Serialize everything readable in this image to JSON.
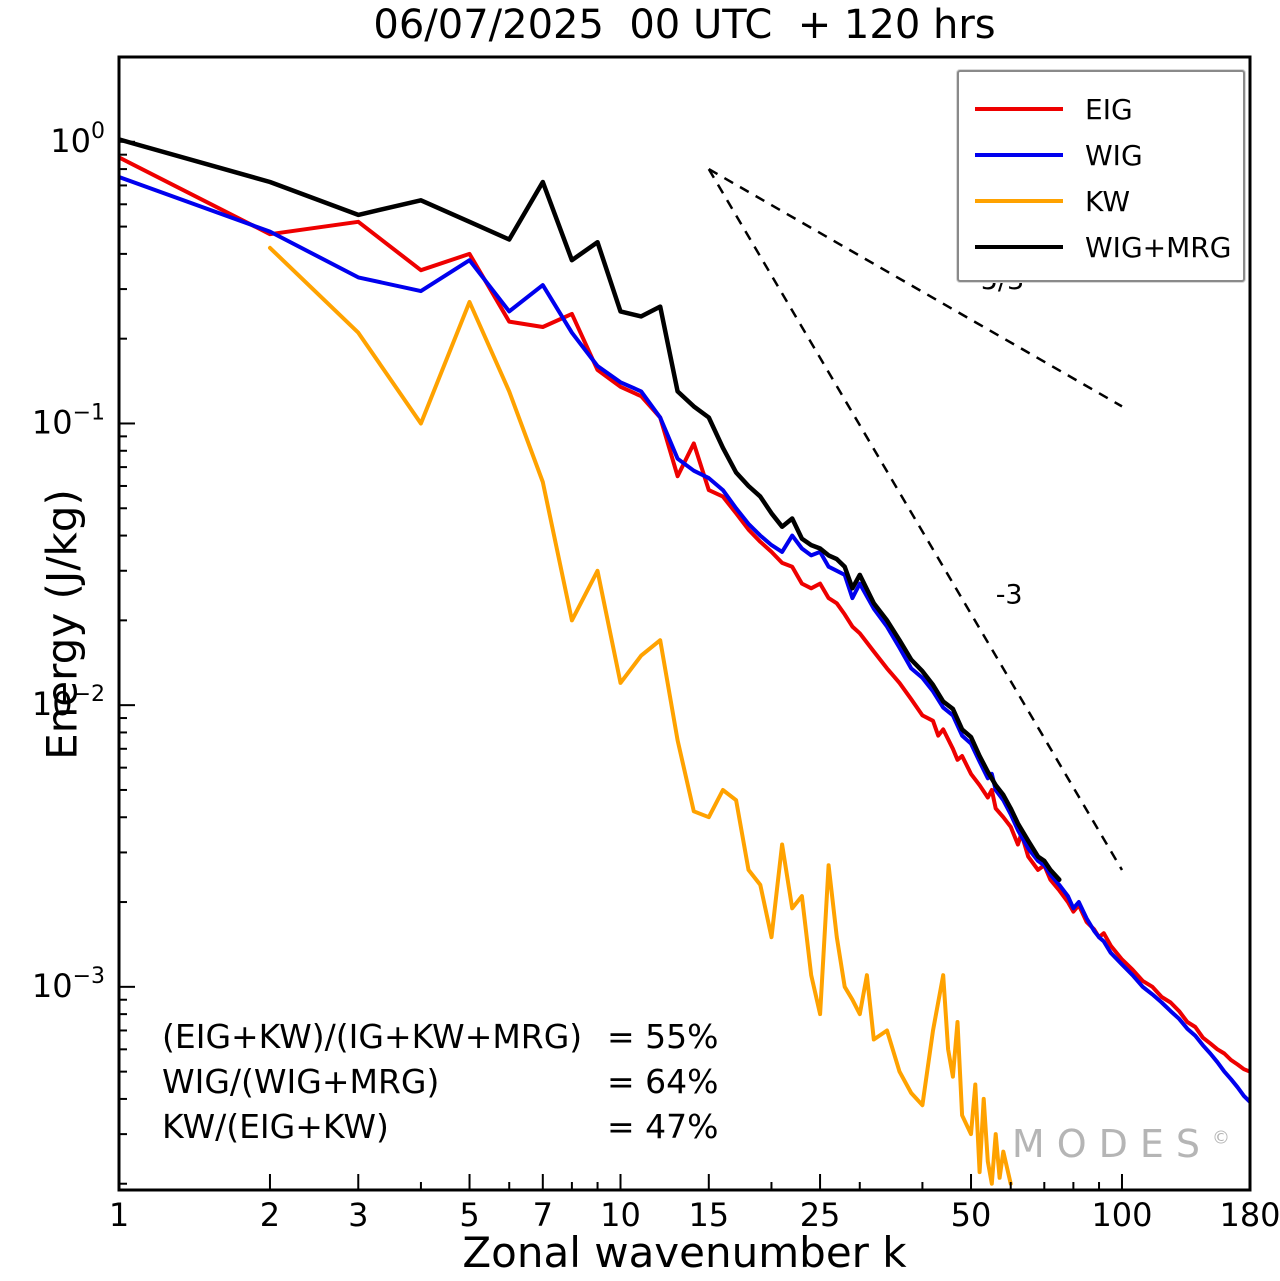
{
  "title": "06/07/2025  00 UTC  + 120 hrs",
  "xlabel": "Zonal wavenumber k",
  "ylabel": "Energy (J/kg)",
  "watermark": {
    "text": "MODES",
    "mark": "©"
  },
  "annotations": [
    {
      "label": "(EIG+KW)/(IG+KW+MRG)",
      "value": "= 55%"
    },
    {
      "label": "WIG/(WIG+MRG)",
      "value": "= 64%"
    },
    {
      "label": "KW/(EIG+KW)",
      "value": "= 47%"
    }
  ],
  "chart_data": {
    "type": "line",
    "x_scale": "log",
    "y_scale": "log",
    "xlim": [
      1,
      180
    ],
    "ylim": [
      0.00019,
      2.0
    ],
    "x_ticks": [
      1,
      2,
      3,
      5,
      7,
      10,
      15,
      25,
      50,
      100,
      180
    ],
    "x_minor_ticks": [
      4,
      6,
      8,
      9,
      20,
      30,
      40,
      60,
      70,
      80,
      90
    ],
    "y_tick_exponents": [
      0,
      -1,
      -2,
      -3
    ],
    "grid": false,
    "legend_position": "top-right",
    "series": [
      {
        "name": "EIG",
        "color": "#ee0000",
        "points": [
          [
            1,
            0.88
          ],
          [
            2,
            0.47
          ],
          [
            3,
            0.52
          ],
          [
            4,
            0.35
          ],
          [
            5,
            0.4
          ],
          [
            6,
            0.23
          ],
          [
            7,
            0.22
          ],
          [
            8,
            0.245
          ],
          [
            9,
            0.155
          ],
          [
            10,
            0.135
          ],
          [
            11,
            0.125
          ],
          [
            12,
            0.105
          ],
          [
            13,
            0.065
          ],
          [
            14,
            0.085
          ],
          [
            15,
            0.058
          ],
          [
            16,
            0.055
          ],
          [
            17,
            0.048
          ],
          [
            18,
            0.042
          ],
          [
            19,
            0.038
          ],
          [
            20,
            0.035
          ],
          [
            21,
            0.032
          ],
          [
            22,
            0.031
          ],
          [
            23,
            0.027
          ],
          [
            24,
            0.026
          ],
          [
            25,
            0.027
          ],
          [
            26,
            0.024
          ],
          [
            27,
            0.023
          ],
          [
            28,
            0.021
          ],
          [
            29,
            0.019
          ],
          [
            30,
            0.018
          ],
          [
            32,
            0.0155
          ],
          [
            34,
            0.0135
          ],
          [
            36,
            0.012
          ],
          [
            38,
            0.0105
          ],
          [
            40,
            0.0092
          ],
          [
            42,
            0.0088
          ],
          [
            43,
            0.0078
          ],
          [
            44,
            0.0082
          ],
          [
            46,
            0.007
          ],
          [
            47,
            0.0064
          ],
          [
            48,
            0.0066
          ],
          [
            50,
            0.0057
          ],
          [
            52,
            0.0052
          ],
          [
            54,
            0.0047
          ],
          [
            55,
            0.005
          ],
          [
            56,
            0.0043
          ],
          [
            58,
            0.004
          ],
          [
            60,
            0.0037
          ],
          [
            62,
            0.0032
          ],
          [
            63,
            0.0035
          ],
          [
            65,
            0.0029
          ],
          [
            68,
            0.0026
          ],
          [
            70,
            0.0027
          ],
          [
            72,
            0.0024
          ],
          [
            75,
            0.0022
          ],
          [
            78,
            0.002
          ],
          [
            80,
            0.00185
          ],
          [
            82,
            0.00195
          ],
          [
            85,
            0.0017
          ],
          [
            88,
            0.0016
          ],
          [
            90,
            0.0015
          ],
          [
            92,
            0.00155
          ],
          [
            95,
            0.0014
          ],
          [
            100,
            0.00125
          ],
          [
            105,
            0.00115
          ],
          [
            110,
            0.00105
          ],
          [
            115,
            0.001
          ],
          [
            120,
            0.00092
          ],
          [
            125,
            0.00088
          ],
          [
            130,
            0.00082
          ],
          [
            135,
            0.00075
          ],
          [
            140,
            0.00072
          ],
          [
            145,
            0.00066
          ],
          [
            150,
            0.00063
          ],
          [
            155,
            0.0006
          ],
          [
            160,
            0.00058
          ],
          [
            165,
            0.00055
          ],
          [
            170,
            0.00053
          ],
          [
            175,
            0.00051
          ],
          [
            180,
            0.0005
          ]
        ]
      },
      {
        "name": "WIG",
        "color": "#0000ee",
        "points": [
          [
            1,
            0.75
          ],
          [
            2,
            0.48
          ],
          [
            3,
            0.33
          ],
          [
            4,
            0.295
          ],
          [
            5,
            0.38
          ],
          [
            6,
            0.25
          ],
          [
            7,
            0.31
          ],
          [
            8,
            0.21
          ],
          [
            9,
            0.16
          ],
          [
            10,
            0.14
          ],
          [
            11,
            0.13
          ],
          [
            12,
            0.105
          ],
          [
            13,
            0.075
          ],
          [
            14,
            0.068
          ],
          [
            15,
            0.064
          ],
          [
            16,
            0.058
          ],
          [
            17,
            0.05
          ],
          [
            18,
            0.044
          ],
          [
            19,
            0.04
          ],
          [
            20,
            0.037
          ],
          [
            21,
            0.035
          ],
          [
            22,
            0.04
          ],
          [
            23,
            0.036
          ],
          [
            24,
            0.034
          ],
          [
            25,
            0.035
          ],
          [
            26,
            0.031
          ],
          [
            27,
            0.03
          ],
          [
            28,
            0.029
          ],
          [
            29,
            0.024
          ],
          [
            30,
            0.027
          ],
          [
            32,
            0.022
          ],
          [
            34,
            0.019
          ],
          [
            36,
            0.016
          ],
          [
            38,
            0.0135
          ],
          [
            40,
            0.0125
          ],
          [
            42,
            0.0112
          ],
          [
            44,
            0.0098
          ],
          [
            46,
            0.0092
          ],
          [
            48,
            0.0078
          ],
          [
            50,
            0.0073
          ],
          [
            52,
            0.0063
          ],
          [
            54,
            0.0055
          ],
          [
            55,
            0.0057
          ],
          [
            56,
            0.005
          ],
          [
            58,
            0.0046
          ],
          [
            60,
            0.0041
          ],
          [
            62,
            0.0036
          ],
          [
            65,
            0.0031
          ],
          [
            68,
            0.0028
          ],
          [
            70,
            0.0027
          ],
          [
            72,
            0.0025
          ],
          [
            75,
            0.0023
          ],
          [
            78,
            0.0021
          ],
          [
            80,
            0.0019
          ],
          [
            82,
            0.002
          ],
          [
            85,
            0.00175
          ],
          [
            88,
            0.00158
          ],
          [
            90,
            0.0015
          ],
          [
            92,
            0.00145
          ],
          [
            95,
            0.00132
          ],
          [
            100,
            0.0012
          ],
          [
            105,
            0.0011
          ],
          [
            110,
            0.001
          ],
          [
            115,
            0.00094
          ],
          [
            120,
            0.00088
          ],
          [
            125,
            0.00082
          ],
          [
            130,
            0.00077
          ],
          [
            135,
            0.00071
          ],
          [
            140,
            0.00067
          ],
          [
            145,
            0.00062
          ],
          [
            150,
            0.00058
          ],
          [
            155,
            0.00054
          ],
          [
            160,
            0.0005
          ],
          [
            165,
            0.00047
          ],
          [
            170,
            0.00044
          ],
          [
            175,
            0.00041
          ],
          [
            180,
            0.00039
          ]
        ]
      },
      {
        "name": "KW",
        "color": "#ffa200",
        "points": [
          [
            2,
            0.42
          ],
          [
            3,
            0.21
          ],
          [
            4,
            0.1
          ],
          [
            5,
            0.27
          ],
          [
            6,
            0.13
          ],
          [
            7,
            0.062
          ],
          [
            8,
            0.02
          ],
          [
            9,
            0.03
          ],
          [
            10,
            0.012
          ],
          [
            11,
            0.015
          ],
          [
            12,
            0.017
          ],
          [
            13,
            0.0075
          ],
          [
            14,
            0.0042
          ],
          [
            15,
            0.004
          ],
          [
            16,
            0.005
          ],
          [
            17,
            0.0046
          ],
          [
            18,
            0.0026
          ],
          [
            19,
            0.0023
          ],
          [
            20,
            0.0015
          ],
          [
            21,
            0.0032
          ],
          [
            22,
            0.0019
          ],
          [
            23,
            0.0021
          ],
          [
            24,
            0.0011
          ],
          [
            25,
            0.0008
          ],
          [
            26,
            0.0027
          ],
          [
            27,
            0.0015
          ],
          [
            28,
            0.001
          ],
          [
            29,
            0.0009
          ],
          [
            30,
            0.0008
          ],
          [
            31,
            0.0011
          ],
          [
            32,
            0.00065
          ],
          [
            34,
            0.0007
          ],
          [
            36,
            0.0005
          ],
          [
            38,
            0.00042
          ],
          [
            40,
            0.00038
          ],
          [
            42,
            0.0007
          ],
          [
            44,
            0.0011
          ],
          [
            45,
            0.0006
          ],
          [
            46,
            0.00048
          ],
          [
            47,
            0.00075
          ],
          [
            48,
            0.00035
          ],
          [
            50,
            0.0003
          ],
          [
            51,
            0.00045
          ],
          [
            52,
            0.00022
          ],
          [
            53,
            0.0004
          ],
          [
            54,
            0.00024
          ],
          [
            55,
            0.0002
          ],
          [
            56,
            0.0003
          ],
          [
            57,
            0.00021
          ],
          [
            58,
            0.00026
          ],
          [
            60,
            0.0002
          ]
        ]
      },
      {
        "name": "WIG+MRG",
        "color": "#000000",
        "points": [
          [
            1,
            1.02
          ],
          [
            2,
            0.72
          ],
          [
            3,
            0.55
          ],
          [
            4,
            0.62
          ],
          [
            5,
            0.52
          ],
          [
            6,
            0.45
          ],
          [
            7,
            0.72
          ],
          [
            8,
            0.38
          ],
          [
            9,
            0.44
          ],
          [
            10,
            0.25
          ],
          [
            11,
            0.24
          ],
          [
            12,
            0.26
          ],
          [
            13,
            0.13
          ],
          [
            14,
            0.115
          ],
          [
            15,
            0.105
          ],
          [
            16,
            0.082
          ],
          [
            17,
            0.067
          ],
          [
            18,
            0.06
          ],
          [
            19,
            0.055
          ],
          [
            20,
            0.048
          ],
          [
            21,
            0.043
          ],
          [
            22,
            0.046
          ],
          [
            23,
            0.039
          ],
          [
            24,
            0.037
          ],
          [
            25,
            0.036
          ],
          [
            26,
            0.034
          ],
          [
            27,
            0.033
          ],
          [
            28,
            0.031
          ],
          [
            29,
            0.026
          ],
          [
            30,
            0.029
          ],
          [
            32,
            0.023
          ],
          [
            34,
            0.02
          ],
          [
            36,
            0.017
          ],
          [
            38,
            0.0145
          ],
          [
            40,
            0.0132
          ],
          [
            42,
            0.0118
          ],
          [
            44,
            0.0103
          ],
          [
            46,
            0.0097
          ],
          [
            48,
            0.0082
          ],
          [
            50,
            0.0077
          ],
          [
            52,
            0.0066
          ],
          [
            54,
            0.0058
          ],
          [
            56,
            0.0052
          ],
          [
            58,
            0.0048
          ],
          [
            60,
            0.0043
          ],
          [
            62,
            0.0038
          ],
          [
            65,
            0.0033
          ],
          [
            68,
            0.0029
          ],
          [
            70,
            0.0028
          ],
          [
            72,
            0.0026
          ],
          [
            75,
            0.0024
          ]
        ]
      }
    ],
    "reference_lines": [
      {
        "label": "-5/3",
        "style": "dashed",
        "color": "#000000",
        "points": [
          [
            15,
            0.8
          ],
          [
            100,
            0.115
          ]
        ],
        "label_pos": [
          50,
          0.3
        ]
      },
      {
        "label": "-3",
        "style": "dashed",
        "color": "#000000",
        "points": [
          [
            15,
            0.8
          ],
          [
            100,
            0.0026
          ]
        ],
        "label_pos": [
          56,
          0.023
        ]
      }
    ]
  }
}
